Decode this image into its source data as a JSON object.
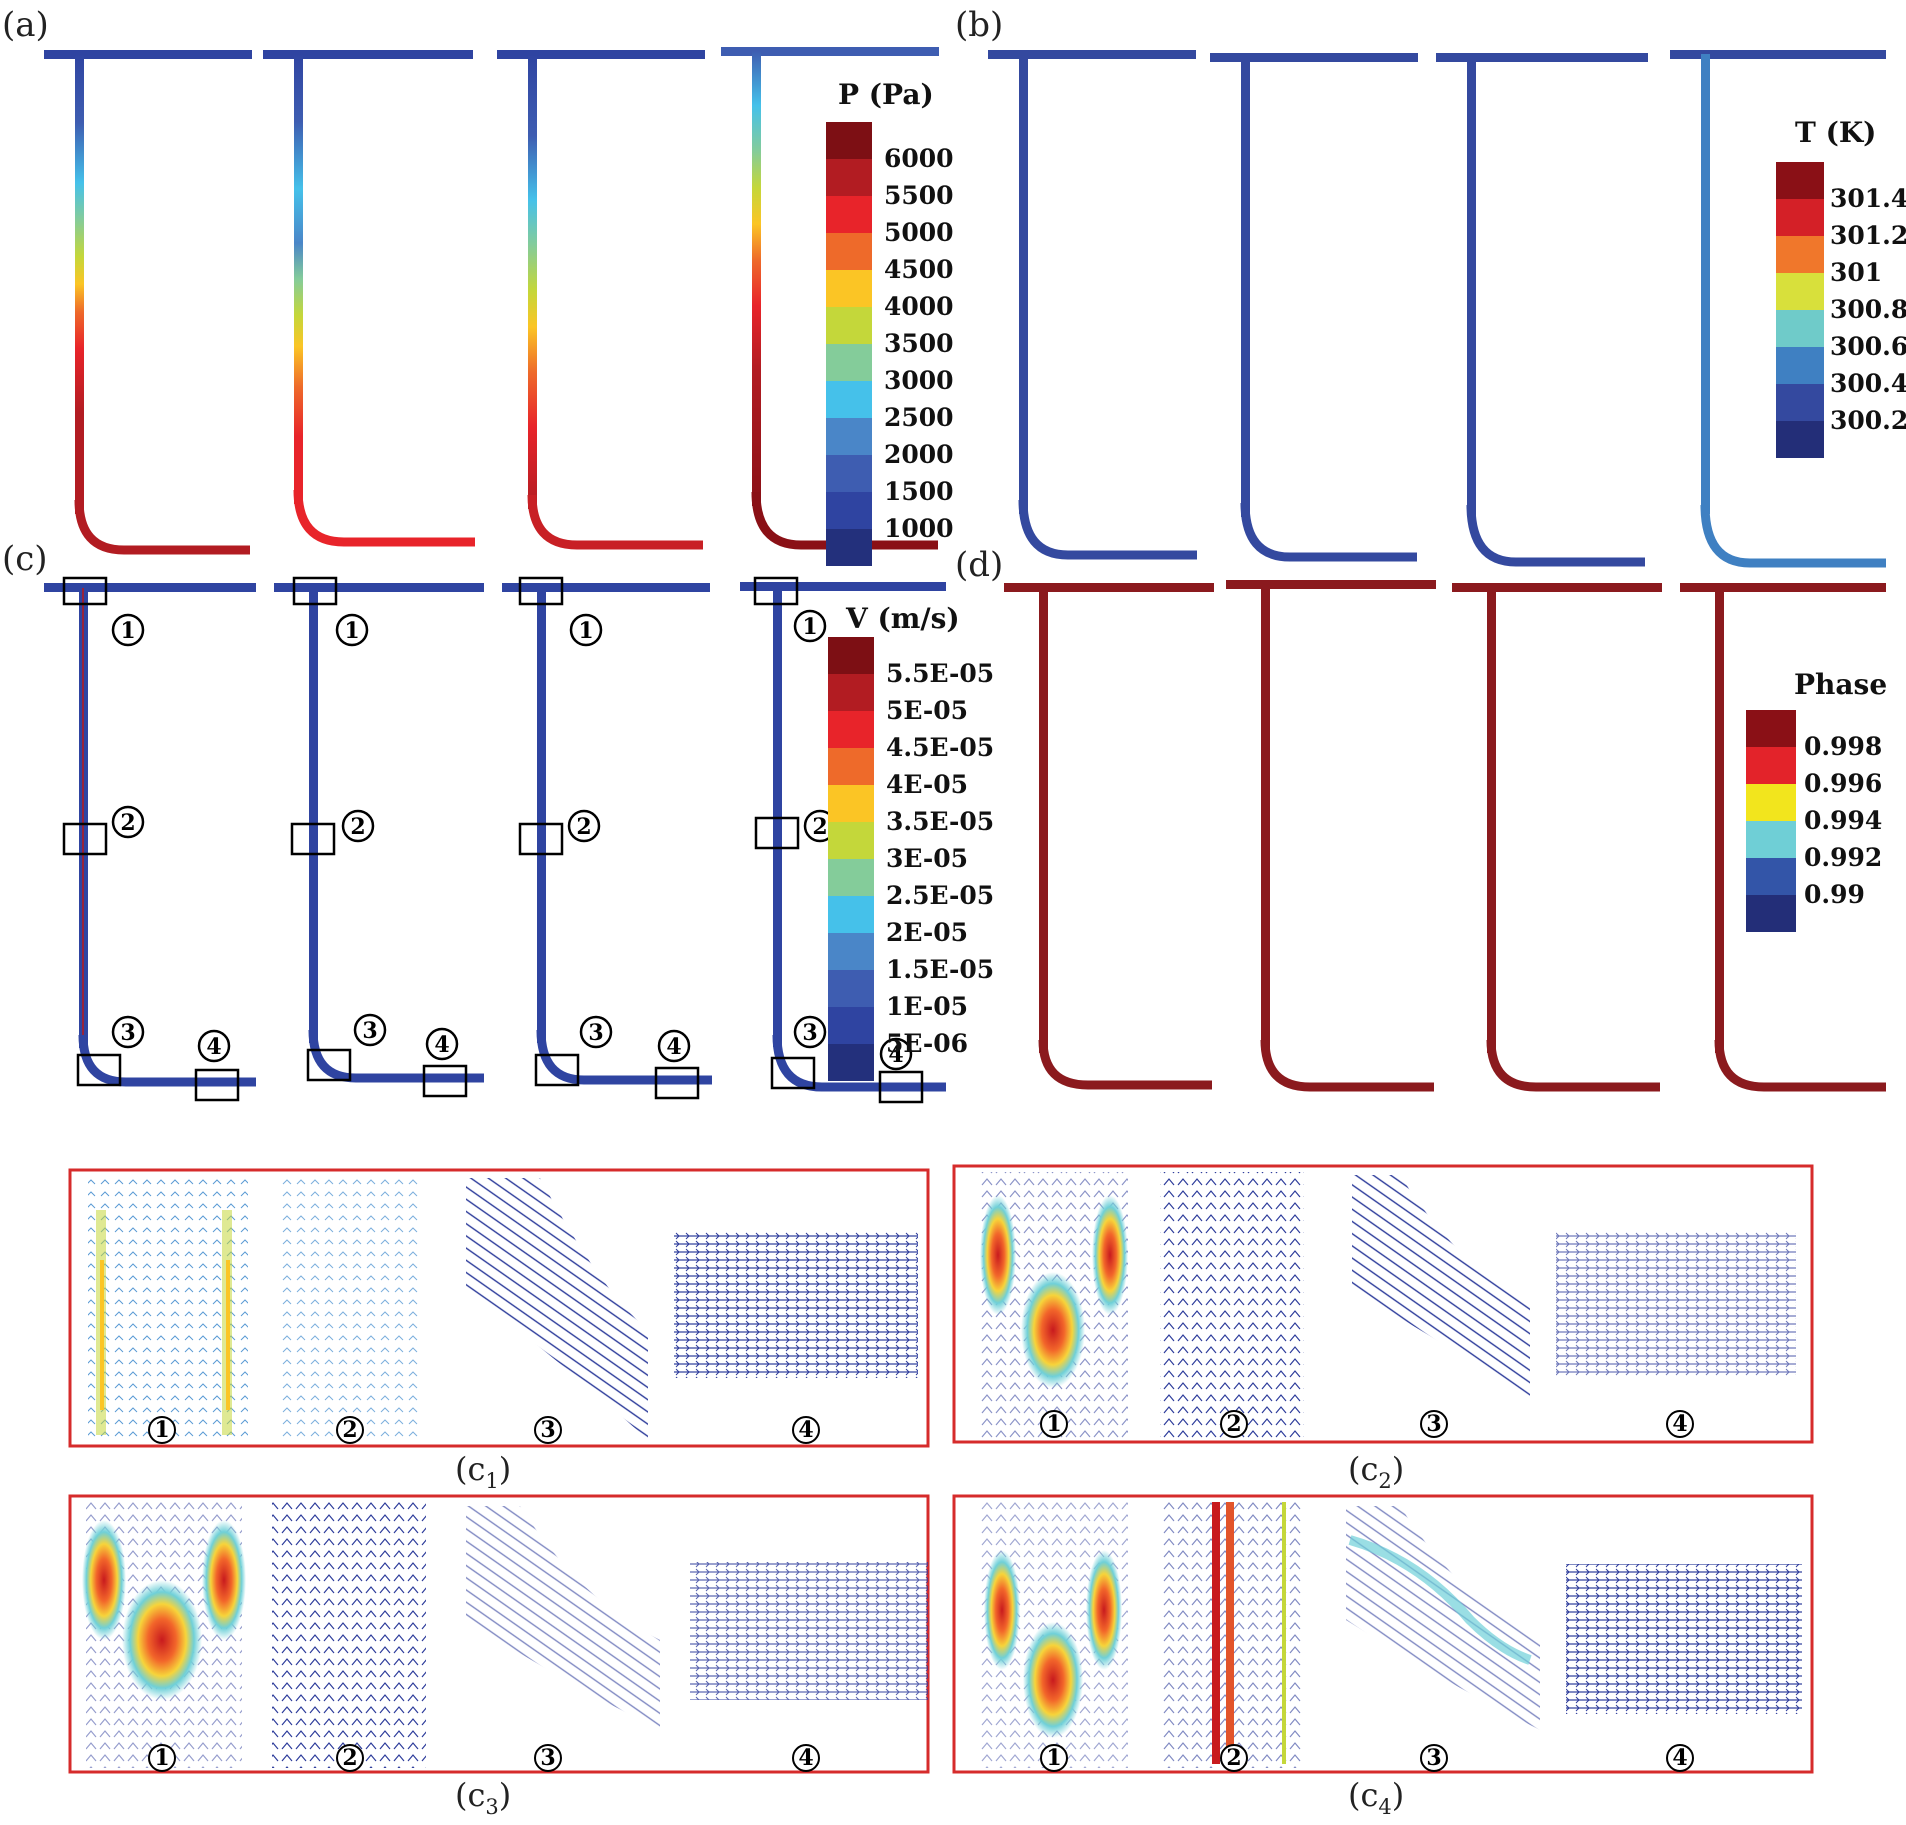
{
  "figure": {
    "panels": {
      "a": {
        "label": "(a)",
        "quantity": "pressure",
        "legend": {
          "title": "P (Pa)",
          "ticks": [
            "6000",
            "5500",
            "5000",
            "4500",
            "4000",
            "3500",
            "3000",
            "2500",
            "2000",
            "1500",
            "1000"
          ],
          "colors": [
            "#7d0f14",
            "#b21c22",
            "#e8242a",
            "#ee6a2a",
            "#fbc525",
            "#c4d73a",
            "#84cc9a",
            "#45c1ea",
            "#4a86c8",
            "#3e5db1",
            "#2f44a1",
            "#23307c"
          ]
        }
      },
      "b": {
        "label": "(b)",
        "quantity": "temperature",
        "legend": {
          "title": "T (K)",
          "ticks": [
            "301.4",
            "301.2",
            "301",
            "300.8",
            "300.6",
            "300.4",
            "300.2"
          ],
          "colors": [
            "#8a1016",
            "#d42027",
            "#f0772b",
            "#d8e03b",
            "#6fcbc9",
            "#3f80c2",
            "#34499f",
            "#232e78"
          ]
        }
      },
      "c": {
        "label": "(c)",
        "quantity": "velocity",
        "legend": {
          "title": "V (m/s)",
          "ticks": [
            "5.5E-05",
            "5E-05",
            "4.5E-05",
            "4E-05",
            "3.5E-05",
            "3E-05",
            "2.5E-05",
            "2E-05",
            "1.5E-05",
            "1E-05",
            "5E-06"
          ],
          "colors": [
            "#7d0f14",
            "#b21c22",
            "#e8242a",
            "#ee6a2a",
            "#fbc525",
            "#c4d73a",
            "#84cc9a",
            "#45c1ea",
            "#4a86c8",
            "#3e5db1",
            "#2f44a1",
            "#23307c"
          ]
        },
        "markers": [
          "①",
          "②",
          "③",
          "④"
        ]
      },
      "d": {
        "label": "(d)",
        "quantity": "phase",
        "legend": {
          "title": "Phase",
          "ticks": [
            "0.998",
            "0.996",
            "0.994",
            "0.992",
            "0.99"
          ],
          "colors": [
            "#8a1016",
            "#e3232a",
            "#f2e51d",
            "#6fcfd6",
            "#3355a8",
            "#232e78"
          ]
        }
      }
    },
    "zooms": [
      {
        "caption_main": "(c",
        "caption_sub": "1",
        "caption_close": ")",
        "labels": [
          "①",
          "②",
          "③",
          "④"
        ]
      },
      {
        "caption_main": "(c",
        "caption_sub": "2",
        "caption_close": ")",
        "labels": [
          "①",
          "②",
          "③",
          "④"
        ]
      },
      {
        "caption_main": "(c",
        "caption_sub": "3",
        "caption_close": ")",
        "labels": [
          "①",
          "②",
          "③",
          "④"
        ]
      },
      {
        "caption_main": "(c",
        "caption_sub": "4",
        "caption_close": ")",
        "labels": [
          "①",
          "②",
          "③",
          "④"
        ]
      }
    ],
    "colors": {
      "pipe_blue": "#33449c",
      "phase_red": "#8b1a1e",
      "zoom_border": "#d62b2b",
      "marker_box": "#000000"
    }
  }
}
